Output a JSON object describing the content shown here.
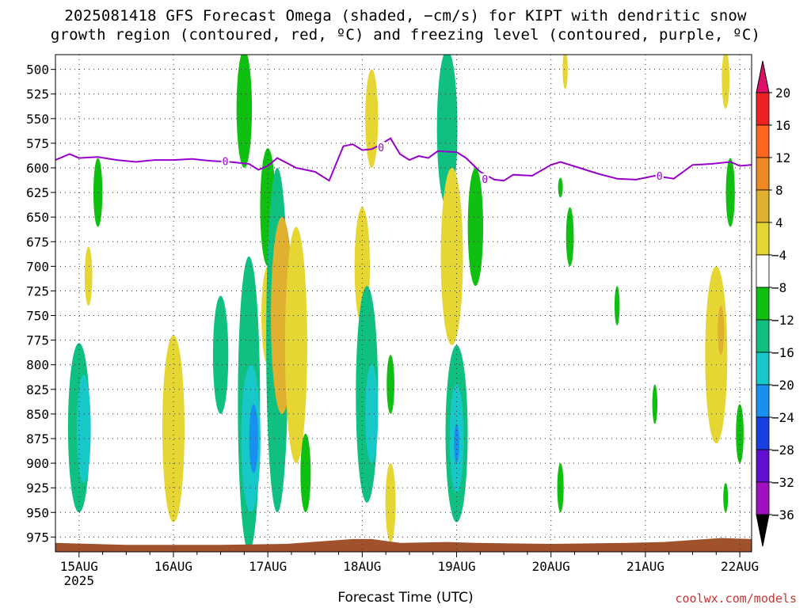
{
  "title_line1": "2025081418 GFS Forecast Omega (shaded, −cm/s) for KIPT with dendritic snow",
  "title_line2": "growth region (contoured, red, ºC) and freezing level (contoured, purple, ºC)",
  "xlabel": "Forecast Time (UTC)",
  "credit": "coolwx.com/models",
  "chart_data": {
    "type": "heatmap",
    "title": "2025081418 GFS Forecast Omega (shaded, −cm/s) for KIPT with dendritic snow growth region (contoured, red, ºC) and freezing level (contoured, purple, ºC)",
    "xlabel": "Forecast Time (UTC)",
    "ylabel": "",
    "x_ticks": [
      "15AUG",
      "16AUG",
      "17AUG",
      "18AUG",
      "19AUG",
      "20AUG",
      "21AUG",
      "22AUG"
    ],
    "x_tick_year": "2025",
    "xlim": [
      14.75,
      22.125
    ],
    "y_ticks": [
      500,
      525,
      550,
      575,
      600,
      625,
      650,
      675,
      700,
      725,
      750,
      775,
      800,
      825,
      850,
      875,
      900,
      925,
      950,
      975
    ],
    "ylim": [
      485,
      990
    ],
    "y_axis": "pressure (hPa), increasing downward",
    "grid": true,
    "colorbar": {
      "levels": [
        20,
        16,
        12,
        8,
        4,
        -4,
        -8,
        -12,
        -16,
        -20,
        -24,
        -28,
        -32,
        -36
      ],
      "colors": [
        "#ee2222",
        "#ff6622",
        "#ee8822",
        "#e0b030",
        "#e6d634",
        "#ffffff",
        "#10c010",
        "#10c080",
        "#18c8c8",
        "#1890f0",
        "#1840e0",
        "#6010d0",
        "#a010c0",
        "#a0a0a0"
      ],
      "top_triangle_color": "#e0106a",
      "bottom_triangle_color": "#000000"
    },
    "freezing_level": {
      "label": "0",
      "color": "#9900cc",
      "points": [
        [
          14.75,
          592
        ],
        [
          14.9,
          586
        ],
        [
          15.0,
          590
        ],
        [
          15.2,
          589
        ],
        [
          15.4,
          592
        ],
        [
          15.6,
          594
        ],
        [
          15.8,
          592
        ],
        [
          16.0,
          592
        ],
        [
          16.2,
          591
        ],
        [
          16.4,
          593
        ],
        [
          16.6,
          594
        ],
        [
          16.8,
          596
        ],
        [
          16.9,
          602
        ],
        [
          17.0,
          598
        ],
        [
          17.1,
          590
        ],
        [
          17.3,
          600
        ],
        [
          17.5,
          604
        ],
        [
          17.65,
          613
        ],
        [
          17.8,
          578
        ],
        [
          17.9,
          576
        ],
        [
          18.0,
          582
        ],
        [
          18.1,
          581
        ],
        [
          18.2,
          576
        ],
        [
          18.3,
          570
        ],
        [
          18.4,
          586
        ],
        [
          18.5,
          592
        ],
        [
          18.6,
          588
        ],
        [
          18.7,
          590
        ],
        [
          18.8,
          583
        ],
        [
          19.0,
          584
        ],
        [
          19.1,
          590
        ],
        [
          19.25,
          604
        ],
        [
          19.4,
          612
        ],
        [
          19.5,
          613
        ],
        [
          19.6,
          607
        ],
        [
          19.8,
          608
        ],
        [
          20.0,
          597
        ],
        [
          20.1,
          594
        ],
        [
          20.3,
          600
        ],
        [
          20.5,
          606
        ],
        [
          20.7,
          611
        ],
        [
          20.9,
          612
        ],
        [
          21.1,
          608
        ],
        [
          21.3,
          611
        ],
        [
          21.5,
          597
        ],
        [
          21.7,
          596
        ],
        [
          21.9,
          594
        ],
        [
          22.0,
          598
        ],
        [
          22.125,
          597
        ]
      ]
    },
    "omega_regions": [
      {
        "t": 15.0,
        "p0": 778,
        "p1": 950,
        "value": -8
      },
      {
        "t": 15.05,
        "p0": 810,
        "p1": 920,
        "value": -12
      },
      {
        "t": 15.2,
        "p0": 590,
        "p1": 660,
        "value": -6
      },
      {
        "t": 15.1,
        "p0": 680,
        "p1": 740,
        "value": 6
      },
      {
        "t": 16.0,
        "p0": 770,
        "p1": 960,
        "value": 6
      },
      {
        "t": 16.5,
        "p0": 730,
        "p1": 850,
        "value": -8
      },
      {
        "t": 16.75,
        "p0": 480,
        "p1": 600,
        "value": -6
      },
      {
        "t": 16.8,
        "p0": 690,
        "p1": 990,
        "value": -8
      },
      {
        "t": 16.82,
        "p0": 800,
        "p1": 950,
        "value": -12
      },
      {
        "t": 16.85,
        "p0": 840,
        "p1": 910,
        "value": -16
      },
      {
        "t": 17.0,
        "p0": 580,
        "p1": 700,
        "value": -6
      },
      {
        "t": 17.0,
        "p0": 700,
        "p1": 800,
        "value": 6
      },
      {
        "t": 17.1,
        "p0": 600,
        "p1": 950,
        "value": -8
      },
      {
        "t": 17.15,
        "p0": 650,
        "p1": 850,
        "value": 8
      },
      {
        "t": 17.3,
        "p0": 660,
        "p1": 900,
        "value": 6
      },
      {
        "t": 17.4,
        "p0": 870,
        "p1": 950,
        "value": -6
      },
      {
        "t": 18.0,
        "p0": 640,
        "p1": 760,
        "value": 6
      },
      {
        "t": 18.05,
        "p0": 720,
        "p1": 940,
        "value": -8
      },
      {
        "t": 18.1,
        "p0": 800,
        "p1": 900,
        "value": -12
      },
      {
        "t": 18.1,
        "p0": 500,
        "p1": 600,
        "value": 6
      },
      {
        "t": 18.3,
        "p0": 790,
        "p1": 850,
        "value": -6
      },
      {
        "t": 18.3,
        "p0": 900,
        "p1": 980,
        "value": 6
      },
      {
        "t": 18.9,
        "p0": 480,
        "p1": 640,
        "value": -8
      },
      {
        "t": 18.95,
        "p0": 600,
        "p1": 780,
        "value": 6
      },
      {
        "t": 19.0,
        "p0": 780,
        "p1": 960,
        "value": -8
      },
      {
        "t": 19.0,
        "p0": 820,
        "p1": 930,
        "value": -12
      },
      {
        "t": 19.0,
        "p0": 860,
        "p1": 900,
        "value": -20
      },
      {
        "t": 19.2,
        "p0": 600,
        "p1": 720,
        "value": -6
      },
      {
        "t": 20.1,
        "p0": 610,
        "p1": 630,
        "value": -6
      },
      {
        "t": 20.2,
        "p0": 640,
        "p1": 700,
        "value": -6
      },
      {
        "t": 20.1,
        "p0": 900,
        "p1": 950,
        "value": -6
      },
      {
        "t": 20.15,
        "p0": 480,
        "p1": 520,
        "value": 6
      },
      {
        "t": 20.7,
        "p0": 720,
        "p1": 760,
        "value": -6
      },
      {
        "t": 21.1,
        "p0": 820,
        "p1": 860,
        "value": -6
      },
      {
        "t": 21.75,
        "p0": 700,
        "p1": 880,
        "value": 6
      },
      {
        "t": 21.8,
        "p0": 740,
        "p1": 790,
        "value": 10
      },
      {
        "t": 21.85,
        "p0": 480,
        "p1": 540,
        "value": 6
      },
      {
        "t": 21.9,
        "p0": 590,
        "p1": 660,
        "value": -6
      },
      {
        "t": 22.0,
        "p0": 840,
        "p1": 900,
        "value": -6
      },
      {
        "t": 21.85,
        "p0": 920,
        "p1": 950,
        "value": -6
      }
    ],
    "terrain_color": "#a0522d",
    "terrain": [
      [
        14.75,
        981
      ],
      [
        15.5,
        983
      ],
      [
        16.5,
        983
      ],
      [
        17.2,
        982
      ],
      [
        17.9,
        977
      ],
      [
        18.1,
        977
      ],
      [
        18.4,
        981
      ],
      [
        18.9,
        980
      ],
      [
        19.2,
        981
      ],
      [
        20.0,
        982
      ],
      [
        20.8,
        981
      ],
      [
        21.2,
        980
      ],
      [
        21.8,
        976
      ],
      [
        22.125,
        977
      ]
    ]
  }
}
